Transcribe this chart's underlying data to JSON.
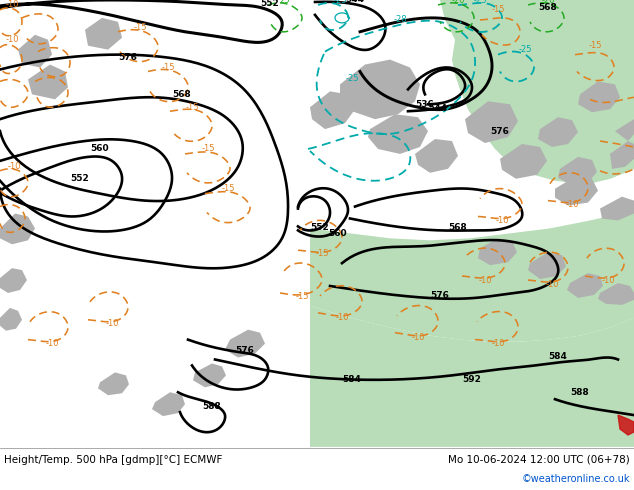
{
  "title_left": "Height/Temp. 500 hPa [gdmp][°C] ECMWF",
  "title_right": "Mo 10-06-2024 12:00 UTC (06+78)",
  "copyright": "©weatheronline.co.uk",
  "bg_gray": "#c8c8c8",
  "green_light": "#b8ddb8",
  "fig_width": 6.34,
  "fig_height": 4.9,
  "dpi": 100,
  "bottom_bar_height": 0.088
}
